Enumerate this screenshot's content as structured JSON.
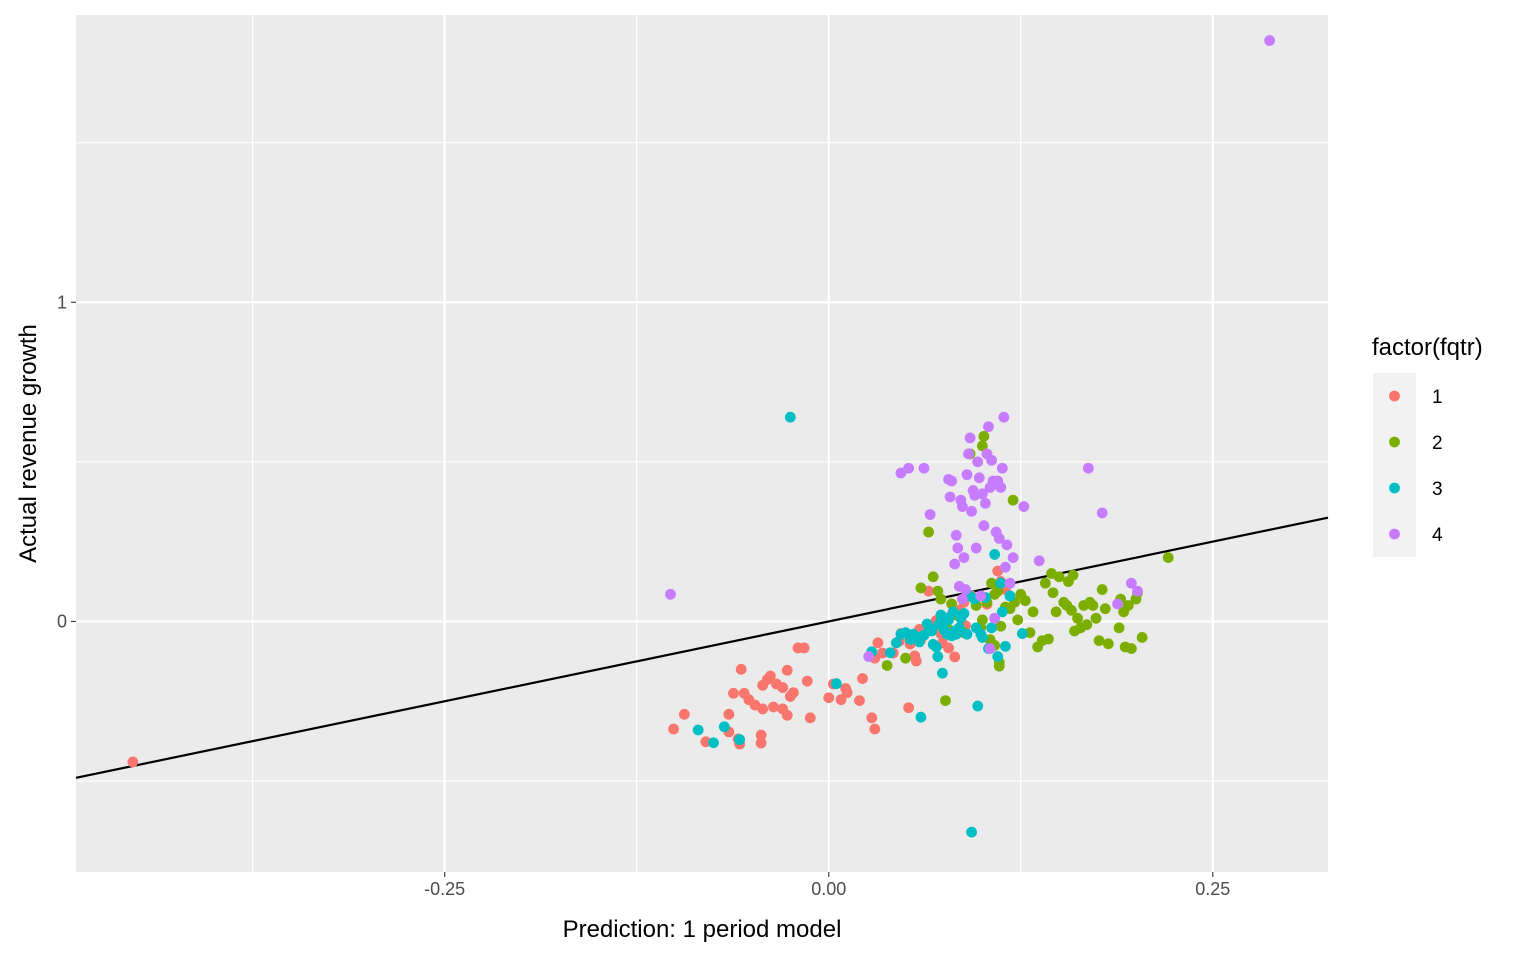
{
  "chart_data": {
    "type": "scatter",
    "xlabel": "Prediction: 1 period model",
    "ylabel": "Actual revenue growth",
    "xlim": [
      -0.49,
      0.325
    ],
    "ylim": [
      -0.785,
      1.9
    ],
    "x_ticks": [
      -0.25,
      0.0,
      0.25
    ],
    "x_tick_labels": [
      "-0.25",
      "0.00",
      "0.25"
    ],
    "y_ticks": [
      0,
      1
    ],
    "y_tick_labels": [
      "0",
      "1"
    ],
    "grid": true,
    "background": "#ebebeb",
    "reference_line": {
      "intercept": 0,
      "slope": 1,
      "color": "#000000"
    },
    "legend": {
      "title": "factor(fqtr)",
      "placement": "right",
      "entries": [
        {
          "label": "1",
          "color": "#F8766D"
        },
        {
          "label": "2",
          "color": "#7CAE00"
        },
        {
          "label": "3",
          "color": "#00BFC4"
        },
        {
          "label": "4",
          "color": "#C77CFF"
        }
      ]
    },
    "series": [
      {
        "name": "1",
        "color": "#F8766D",
        "points": [
          [
            -0.453,
            -0.44
          ],
          [
            -0.101,
            -0.337
          ],
          [
            -0.094,
            -0.291
          ],
          [
            -0.08,
            -0.377
          ],
          [
            -0.065,
            -0.291
          ],
          [
            -0.065,
            -0.346
          ],
          [
            -0.062,
            -0.225
          ],
          [
            -0.059,
            -0.368
          ],
          [
            -0.058,
            -0.384
          ],
          [
            -0.057,
            -0.15
          ],
          [
            -0.055,
            -0.225
          ],
          [
            -0.052,
            -0.245
          ],
          [
            -0.048,
            -0.262
          ],
          [
            -0.044,
            -0.381
          ],
          [
            -0.044,
            -0.356
          ],
          [
            -0.043,
            -0.2
          ],
          [
            -0.043,
            -0.274
          ],
          [
            -0.04,
            -0.182
          ],
          [
            -0.038,
            -0.171
          ],
          [
            -0.036,
            -0.268
          ],
          [
            -0.034,
            -0.196
          ],
          [
            -0.03,
            -0.207
          ],
          [
            -0.03,
            -0.274
          ],
          [
            -0.027,
            -0.153
          ],
          [
            -0.027,
            -0.294
          ],
          [
            -0.025,
            -0.235
          ],
          [
            -0.023,
            -0.223
          ],
          [
            -0.02,
            -0.083
          ],
          [
            -0.016,
            -0.083
          ],
          [
            -0.014,
            -0.187
          ],
          [
            -0.012,
            -0.302
          ],
          [
            0.0,
            -0.239
          ],
          [
            0.003,
            -0.196
          ],
          [
            0.008,
            -0.245
          ],
          [
            0.011,
            -0.21
          ],
          [
            0.012,
            -0.223
          ],
          [
            0.02,
            -0.248
          ],
          [
            0.022,
            -0.179
          ],
          [
            0.028,
            -0.302
          ],
          [
            0.03,
            -0.337
          ],
          [
            0.03,
            -0.115
          ],
          [
            0.032,
            -0.067
          ],
          [
            0.035,
            -0.099
          ],
          [
            0.042,
            -0.099
          ],
          [
            0.046,
            -0.061
          ],
          [
            0.052,
            -0.27
          ],
          [
            0.053,
            -0.071
          ],
          [
            0.056,
            -0.108
          ],
          [
            0.057,
            -0.124
          ],
          [
            0.059,
            -0.025
          ],
          [
            0.06,
            -0.057
          ],
          [
            0.065,
            0.095
          ],
          [
            0.068,
            -0.022
          ],
          [
            0.07,
            0.003
          ],
          [
            0.073,
            -0.038
          ],
          [
            0.074,
            -0.067
          ],
          [
            0.078,
            -0.083
          ],
          [
            0.08,
            0.02
          ],
          [
            0.082,
            -0.111
          ],
          [
            0.085,
            0.035
          ],
          [
            0.088,
            0.06
          ],
          [
            0.093,
            0.08
          ],
          [
            0.103,
            0.054
          ],
          [
            0.11,
            0.158
          ],
          [
            0.112,
            0.125
          ],
          [
            0.115,
            0.1
          ],
          [
            0.089,
            -0.013
          ],
          [
            0.047,
            -0.038
          ]
        ]
      },
      {
        "name": "2",
        "color": "#7CAE00",
        "points": [
          [
            0.038,
            -0.138
          ],
          [
            0.05,
            -0.115
          ],
          [
            0.06,
            0.105
          ],
          [
            0.065,
            0.28
          ],
          [
            0.068,
            0.14
          ],
          [
            0.071,
            0.095
          ],
          [
            0.073,
            0.07
          ],
          [
            0.076,
            -0.248
          ],
          [
            0.078,
            -0.025
          ],
          [
            0.08,
            0.055
          ],
          [
            0.083,
            0.02
          ],
          [
            0.088,
            -0.035
          ],
          [
            0.092,
            0.525
          ],
          [
            0.096,
            0.05
          ],
          [
            0.099,
            -0.018
          ],
          [
            0.1,
            0.55
          ],
          [
            0.101,
            0.58
          ],
          [
            0.103,
            0.06
          ],
          [
            0.105,
            -0.057
          ],
          [
            0.106,
            0.12
          ],
          [
            0.108,
            0.085
          ],
          [
            0.11,
            0.095
          ],
          [
            0.111,
            -0.128
          ],
          [
            0.112,
            -0.015
          ],
          [
            0.115,
            0.045
          ],
          [
            0.118,
            0.04
          ],
          [
            0.12,
            0.38
          ],
          [
            0.121,
            0.06
          ],
          [
            0.123,
            0.005
          ],
          [
            0.125,
            0.085
          ],
          [
            0.128,
            0.065
          ],
          [
            0.131,
            -0.035
          ],
          [
            0.133,
            0.03
          ],
          [
            0.136,
            -0.08
          ],
          [
            0.139,
            -0.06
          ],
          [
            0.141,
            0.12
          ],
          [
            0.143,
            -0.055
          ],
          [
            0.145,
            0.15
          ],
          [
            0.146,
            0.09
          ],
          [
            0.148,
            0.03
          ],
          [
            0.15,
            0.14
          ],
          [
            0.153,
            0.06
          ],
          [
            0.155,
            0.05
          ],
          [
            0.156,
            0.125
          ],
          [
            0.158,
            0.035
          ],
          [
            0.159,
            0.145
          ],
          [
            0.16,
            -0.03
          ],
          [
            0.162,
            0.01
          ],
          [
            0.164,
            -0.02
          ],
          [
            0.166,
            0.05
          ],
          [
            0.168,
            -0.01
          ],
          [
            0.17,
            0.06
          ],
          [
            0.172,
            0.05
          ],
          [
            0.174,
            0.01
          ],
          [
            0.176,
            -0.06
          ],
          [
            0.178,
            0.1
          ],
          [
            0.18,
            0.04
          ],
          [
            0.182,
            -0.07
          ],
          [
            0.189,
            -0.02
          ],
          [
            0.19,
            0.07
          ],
          [
            0.192,
            0.03
          ],
          [
            0.193,
            -0.08
          ],
          [
            0.195,
            0.05
          ],
          [
            0.197,
            -0.085
          ],
          [
            0.2,
            0.07
          ],
          [
            0.201,
            0.09
          ],
          [
            0.204,
            -0.05
          ],
          [
            0.221,
            0.2
          ],
          [
            0.1,
            0.005
          ],
          [
            0.108,
            -0.075
          ],
          [
            0.111,
            -0.14
          ]
        ]
      },
      {
        "name": "3",
        "color": "#00BFC4",
        "points": [
          [
            -0.085,
            -0.34
          ],
          [
            -0.075,
            -0.38
          ],
          [
            -0.068,
            -0.33
          ],
          [
            -0.058,
            -0.37
          ],
          [
            -0.025,
            0.64
          ],
          [
            0.005,
            -0.195
          ],
          [
            0.028,
            -0.095
          ],
          [
            0.04,
            -0.098
          ],
          [
            0.044,
            -0.067
          ],
          [
            0.047,
            -0.04
          ],
          [
            0.05,
            -0.035
          ],
          [
            0.053,
            -0.056
          ],
          [
            0.055,
            -0.04
          ],
          [
            0.057,
            -0.048
          ],
          [
            0.059,
            -0.064
          ],
          [
            0.06,
            -0.3
          ],
          [
            0.062,
            -0.043
          ],
          [
            0.064,
            -0.008
          ],
          [
            0.065,
            -0.015
          ],
          [
            0.067,
            -0.03
          ],
          [
            0.068,
            -0.072
          ],
          [
            0.07,
            -0.08
          ],
          [
            0.071,
            -0.11
          ],
          [
            0.072,
            -0.008
          ],
          [
            0.073,
            0.02
          ],
          [
            0.074,
            -0.162
          ],
          [
            0.075,
            -0.025
          ],
          [
            0.076,
            0.01
          ],
          [
            0.077,
            -0.04
          ],
          [
            0.078,
            0.005
          ],
          [
            0.08,
            -0.045
          ],
          [
            0.081,
            0.03
          ],
          [
            0.082,
            -0.03
          ],
          [
            0.083,
            -0.04
          ],
          [
            0.085,
            -0.02
          ],
          [
            0.086,
            0.01
          ],
          [
            0.088,
            0.025
          ],
          [
            0.09,
            -0.04
          ],
          [
            0.092,
            0.08
          ],
          [
            0.093,
            -0.66
          ],
          [
            0.095,
            0.07
          ],
          [
            0.096,
            -0.02
          ],
          [
            0.097,
            -0.265
          ],
          [
            0.099,
            -0.04
          ],
          [
            0.1,
            -0.05
          ],
          [
            0.102,
            0.075
          ],
          [
            0.104,
            -0.085
          ],
          [
            0.106,
            -0.02
          ],
          [
            0.108,
            0.21
          ],
          [
            0.11,
            -0.11
          ],
          [
            0.112,
            0.12
          ],
          [
            0.115,
            -0.078
          ],
          [
            0.118,
            0.08
          ],
          [
            0.126,
            -0.038
          ],
          [
            0.113,
            0.03
          ]
        ]
      },
      {
        "name": "4",
        "color": "#C77CFF",
        "points": [
          [
            -0.103,
            0.085
          ],
          [
            0.026,
            -0.11
          ],
          [
            0.047,
            0.465
          ],
          [
            0.052,
            0.48
          ],
          [
            0.062,
            0.48
          ],
          [
            0.066,
            0.335
          ],
          [
            0.078,
            0.445
          ],
          [
            0.079,
            0.39
          ],
          [
            0.08,
            0.44
          ],
          [
            0.082,
            0.18
          ],
          [
            0.083,
            0.27
          ],
          [
            0.084,
            0.23
          ],
          [
            0.085,
            0.11
          ],
          [
            0.086,
            0.38
          ],
          [
            0.087,
            0.36
          ],
          [
            0.088,
            0.2
          ],
          [
            0.089,
            0.1
          ],
          [
            0.09,
            0.46
          ],
          [
            0.091,
            0.525
          ],
          [
            0.092,
            0.575
          ],
          [
            0.093,
            0.345
          ],
          [
            0.094,
            0.41
          ],
          [
            0.095,
            0.395
          ],
          [
            0.096,
            0.23
          ],
          [
            0.097,
            0.5
          ],
          [
            0.098,
            0.45
          ],
          [
            0.099,
            0.08
          ],
          [
            0.1,
            0.4
          ],
          [
            0.101,
            0.3
          ],
          [
            0.102,
            0.37
          ],
          [
            0.103,
            0.525
          ],
          [
            0.104,
            0.61
          ],
          [
            0.105,
            0.42
          ],
          [
            0.106,
            0.505
          ],
          [
            0.107,
            0.44
          ],
          [
            0.108,
            0.43
          ],
          [
            0.109,
            0.28
          ],
          [
            0.11,
            0.44
          ],
          [
            0.111,
            0.26
          ],
          [
            0.112,
            0.42
          ],
          [
            0.113,
            0.48
          ],
          [
            0.114,
            0.64
          ],
          [
            0.115,
            0.17
          ],
          [
            0.116,
            0.24
          ],
          [
            0.118,
            0.12
          ],
          [
            0.12,
            0.2
          ],
          [
            0.127,
            0.36
          ],
          [
            0.137,
            0.19
          ],
          [
            0.169,
            0.48
          ],
          [
            0.178,
            0.34
          ],
          [
            0.188,
            0.055
          ],
          [
            0.197,
            0.12
          ],
          [
            0.201,
            0.095
          ],
          [
            0.287,
            1.82
          ],
          [
            0.087,
            0.07
          ],
          [
            0.105,
            -0.085
          ],
          [
            0.108,
            0.01
          ]
        ]
      }
    ]
  }
}
